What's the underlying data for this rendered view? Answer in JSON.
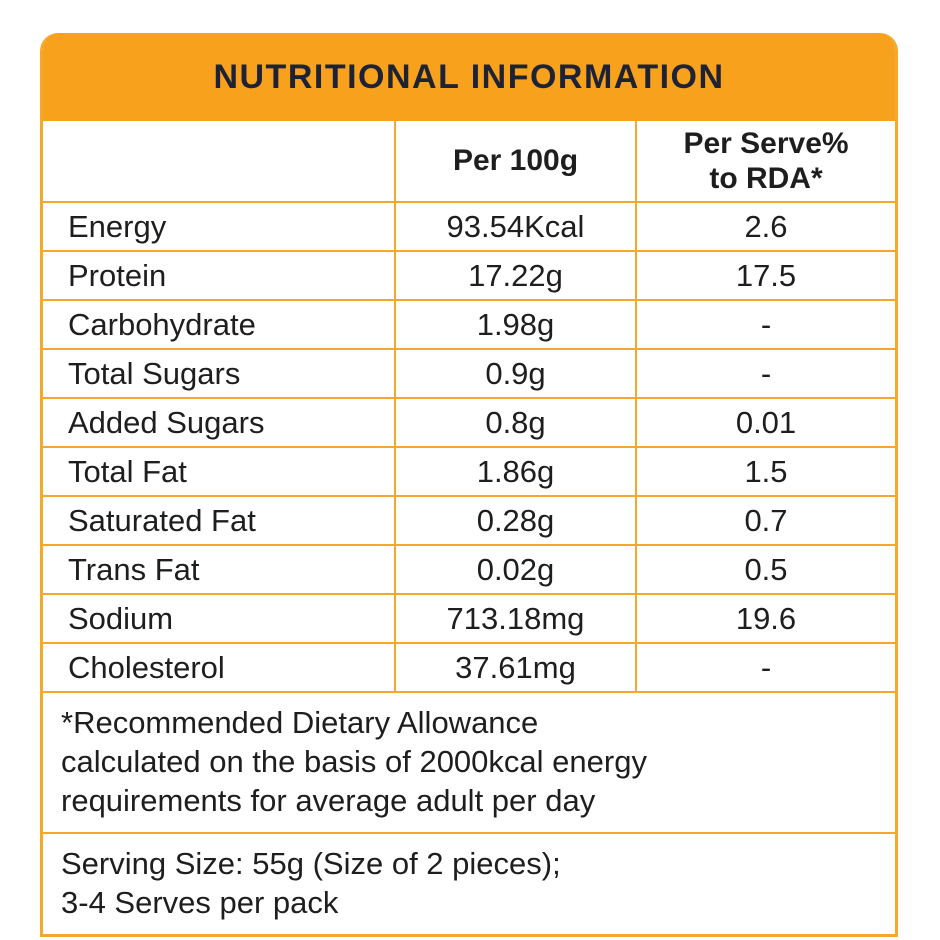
{
  "label": {
    "title": "NUTRITIONAL INFORMATION",
    "accent_color": "#F8A11D",
    "grid_color": "#F6A82D",
    "title_text_color": "#1E2235",
    "body_text_color": "#1E1E1E"
  },
  "table": {
    "columns": {
      "nutrient": "",
      "per_100g": "Per 100g",
      "per_serve_rda": "Per Serve%\nto RDA*"
    },
    "rows": [
      {
        "label": "Energy",
        "per_100g": "93.54Kcal",
        "per_serve_rda": "2.6"
      },
      {
        "label": "Protein",
        "per_100g": "17.22g",
        "per_serve_rda": "17.5"
      },
      {
        "label": "Carbohydrate",
        "per_100g": "1.98g",
        "per_serve_rda": "-"
      },
      {
        "label": "Total Sugars",
        "per_100g": "0.9g",
        "per_serve_rda": "-"
      },
      {
        "label": "Added Sugars",
        "per_100g": "0.8g",
        "per_serve_rda": "0.01"
      },
      {
        "label": "Total Fat",
        "per_100g": "1.86g",
        "per_serve_rda": "1.5"
      },
      {
        "label": "Saturated Fat",
        "per_100g": "0.28g",
        "per_serve_rda": "0.7"
      },
      {
        "label": "Trans Fat",
        "per_100g": "0.02g",
        "per_serve_rda": "0.5"
      },
      {
        "label": "Sodium",
        "per_100g": "713.18mg",
        "per_serve_rda": "19.6"
      },
      {
        "label": "Cholesterol",
        "per_100g": "37.61mg",
        "per_serve_rda": "-"
      }
    ]
  },
  "notes": {
    "rda_note": "*Recommended Dietary Allowance\ncalculated on the basis of 2000kcal energy\nrequirements for average adult per day",
    "serving_note": "Serving Size: 55g (Size of 2 pieces);\n3-4 Serves per pack"
  }
}
